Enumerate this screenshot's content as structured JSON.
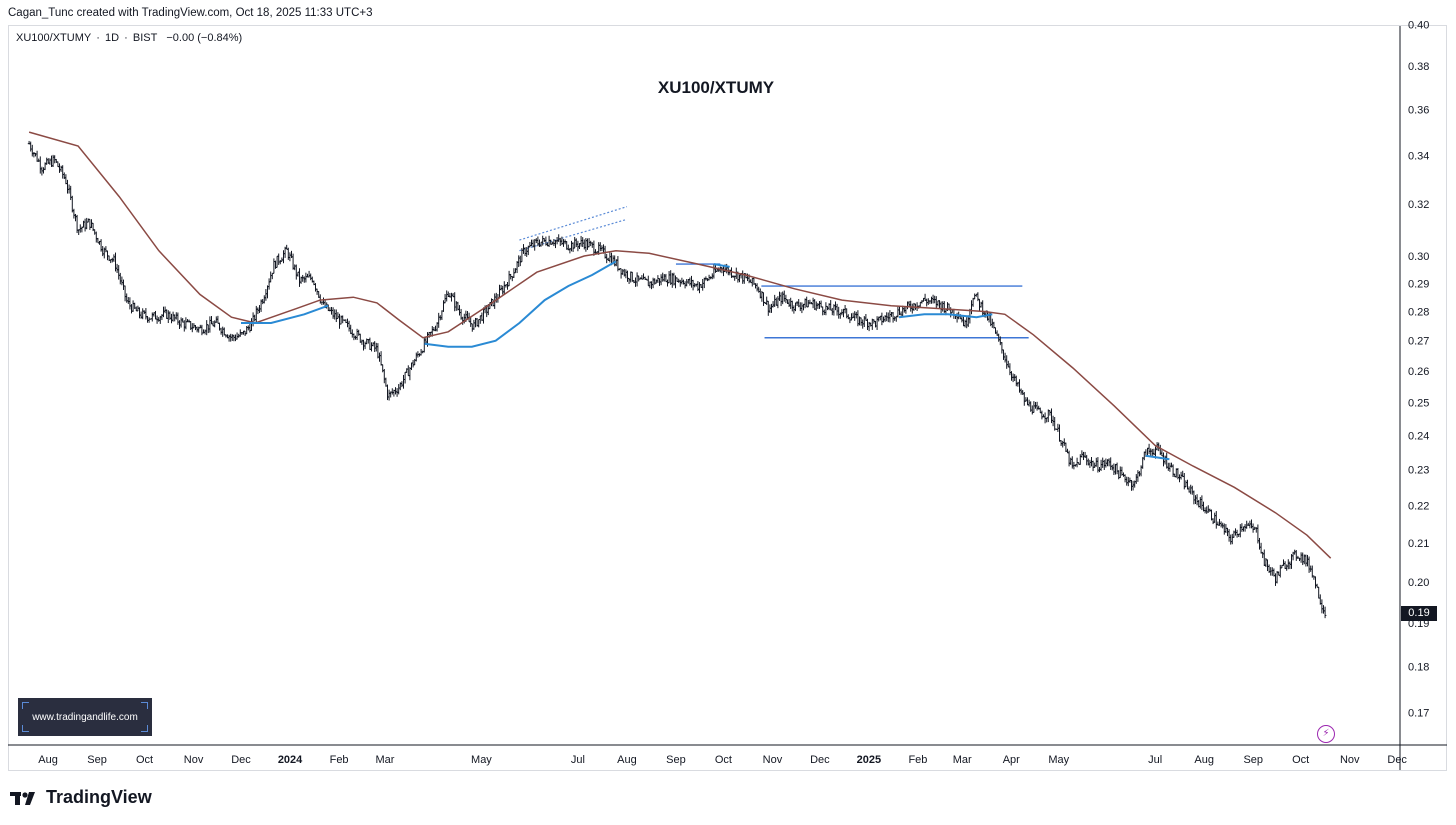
{
  "header": {
    "credit": "Cagan_Tunc created with TradingView.com, Oct 18, 2025 11:33 UTC+3"
  },
  "legend": {
    "symbol": "XU100/XTUMY",
    "interval": "1D",
    "exchange": "BIST",
    "change": "−0.00 (−0.84%)",
    "separator": "·"
  },
  "watermark": {
    "text": "www.tradingandlife.com"
  },
  "branding": {
    "logo_text": "TradingView"
  },
  "replay_icon": {
    "name": "lightning-icon",
    "glyph": "⚡"
  },
  "colors": {
    "candle": "#131722",
    "ma_slow": "#8b4a44",
    "ma_fast": "#2a8ad4",
    "level_line": "#3d76d6",
    "channel_line": "#5b8bd6",
    "price_badge_bg": "#131722"
  },
  "chart_data": {
    "type": "ohlc",
    "title": "XU100/XTUMY",
    "scale": "log",
    "ylim": [
      0.165,
      0.4
    ],
    "y_ticks": [
      "0.40",
      "0.38",
      "0.36",
      "0.34",
      "0.32",
      "0.30",
      "0.29",
      "0.28",
      "0.27",
      "0.26",
      "0.25",
      "0.24",
      "0.23",
      "0.22",
      "0.21",
      "0.20",
      "0.19",
      "0.18",
      "0.17"
    ],
    "x_ticks": [
      {
        "label": "Aug",
        "date": "2023-08-01"
      },
      {
        "label": "Sep",
        "date": "2023-09-01"
      },
      {
        "label": "Oct",
        "date": "2023-10-01"
      },
      {
        "label": "Nov",
        "date": "2023-11-01"
      },
      {
        "label": "Dec",
        "date": "2023-12-01"
      },
      {
        "label": "2024",
        "date": "2024-01-01",
        "bold": true
      },
      {
        "label": "Feb",
        "date": "2024-02-01"
      },
      {
        "label": "Mar",
        "date": "2024-03-01"
      },
      {
        "label": "May",
        "date": "2024-05-01"
      },
      {
        "label": "Jul",
        "date": "2024-07-01"
      },
      {
        "label": "Aug",
        "date": "2024-08-01"
      },
      {
        "label": "Sep",
        "date": "2024-09-01"
      },
      {
        "label": "Oct",
        "date": "2024-10-01"
      },
      {
        "label": "Nov",
        "date": "2024-11-01"
      },
      {
        "label": "Dec",
        "date": "2024-12-01"
      },
      {
        "label": "2025",
        "date": "2025-01-01",
        "bold": true
      },
      {
        "label": "Feb",
        "date": "2025-02-01"
      },
      {
        "label": "Mar",
        "date": "2025-03-01"
      },
      {
        "label": "Apr",
        "date": "2025-04-01"
      },
      {
        "label": "May",
        "date": "2025-05-01"
      },
      {
        "label": "Jul",
        "date": "2025-07-01"
      },
      {
        "label": "Aug",
        "date": "2025-08-01"
      },
      {
        "label": "Sep",
        "date": "2025-09-01"
      },
      {
        "label": "Oct",
        "date": "2025-10-01"
      },
      {
        "label": "Nov",
        "date": "2025-11-01"
      },
      {
        "label": "Dec",
        "date": "2025-12-01"
      }
    ],
    "last_price_label": "0.19",
    "last_price": 0.192,
    "series": [
      {
        "kind": "price",
        "points": [
          [
            "2023-07-20",
            0.345
          ],
          [
            "2023-07-28",
            0.335
          ],
          [
            "2023-08-05",
            0.338
          ],
          [
            "2023-08-12",
            0.33
          ],
          [
            "2023-08-20",
            0.31
          ],
          [
            "2023-08-27",
            0.313
          ],
          [
            "2023-09-05",
            0.302
          ],
          [
            "2023-09-12",
            0.298
          ],
          [
            "2023-09-20",
            0.283
          ],
          [
            "2023-09-28",
            0.279
          ],
          [
            "2023-10-05",
            0.278
          ],
          [
            "2023-10-15",
            0.279
          ],
          [
            "2023-10-25",
            0.276
          ],
          [
            "2023-11-05",
            0.274
          ],
          [
            "2023-11-15",
            0.276
          ],
          [
            "2023-11-25",
            0.271
          ],
          [
            "2023-12-02",
            0.272
          ],
          [
            "2023-12-08",
            0.276
          ],
          [
            "2023-12-15",
            0.285
          ],
          [
            "2023-12-22",
            0.297
          ],
          [
            "2023-12-30",
            0.302
          ],
          [
            "2024-01-07",
            0.291
          ],
          [
            "2024-01-15",
            0.292
          ],
          [
            "2024-01-22",
            0.282
          ],
          [
            "2024-01-30",
            0.278
          ],
          [
            "2024-02-08",
            0.274
          ],
          [
            "2024-02-16",
            0.27
          ],
          [
            "2024-02-25",
            0.267
          ],
          [
            "2024-03-03",
            0.252
          ],
          [
            "2024-03-10",
            0.255
          ],
          [
            "2024-03-18",
            0.262
          ],
          [
            "2024-03-25",
            0.268
          ],
          [
            "2024-04-02",
            0.275
          ],
          [
            "2024-04-10",
            0.287
          ],
          [
            "2024-04-18",
            0.279
          ],
          [
            "2024-04-26",
            0.275
          ],
          [
            "2024-05-05",
            0.281
          ],
          [
            "2024-05-12",
            0.286
          ],
          [
            "2024-05-20",
            0.293
          ],
          [
            "2024-05-28",
            0.302
          ],
          [
            "2024-06-05",
            0.305
          ],
          [
            "2024-06-15",
            0.306
          ],
          [
            "2024-06-25",
            0.304
          ],
          [
            "2024-07-05",
            0.305
          ],
          [
            "2024-07-15",
            0.302
          ],
          [
            "2024-07-22",
            0.299
          ],
          [
            "2024-07-30",
            0.294
          ],
          [
            "2024-08-07",
            0.291
          ],
          [
            "2024-08-15",
            0.29
          ],
          [
            "2024-08-25",
            0.292
          ],
          [
            "2024-09-05",
            0.291
          ],
          [
            "2024-09-15",
            0.289
          ],
          [
            "2024-09-22",
            0.292
          ],
          [
            "2024-09-30",
            0.296
          ],
          [
            "2024-10-06",
            0.294
          ],
          [
            "2024-10-14",
            0.292
          ],
          [
            "2024-10-22",
            0.289
          ],
          [
            "2024-10-30",
            0.281
          ],
          [
            "2024-11-07",
            0.285
          ],
          [
            "2024-11-15",
            0.282
          ],
          [
            "2024-11-25",
            0.283
          ],
          [
            "2024-12-05",
            0.281
          ],
          [
            "2024-12-15",
            0.28
          ],
          [
            "2024-12-25",
            0.277
          ],
          [
            "2025-01-05",
            0.276
          ],
          [
            "2025-01-12",
            0.278
          ],
          [
            "2025-01-20",
            0.28
          ],
          [
            "2025-01-28",
            0.282
          ],
          [
            "2025-02-05",
            0.284
          ],
          [
            "2025-02-13",
            0.283
          ],
          [
            "2025-02-20",
            0.281
          ],
          [
            "2025-02-27",
            0.279
          ],
          [
            "2025-03-03",
            0.275
          ],
          [
            "2025-03-08",
            0.286
          ],
          [
            "2025-03-14",
            0.281
          ],
          [
            "2025-03-20",
            0.275
          ],
          [
            "2025-03-26",
            0.267
          ],
          [
            "2025-04-02",
            0.258
          ],
          [
            "2025-04-10",
            0.25
          ],
          [
            "2025-04-18",
            0.247
          ],
          [
            "2025-04-26",
            0.246
          ],
          [
            "2025-05-04",
            0.237
          ],
          [
            "2025-05-10",
            0.23
          ],
          [
            "2025-05-16",
            0.234
          ],
          [
            "2025-05-24",
            0.231
          ],
          [
            "2025-06-02",
            0.232
          ],
          [
            "2025-06-10",
            0.228
          ],
          [
            "2025-06-18",
            0.226
          ],
          [
            "2025-06-25",
            0.235
          ],
          [
            "2025-07-02",
            0.236
          ],
          [
            "2025-07-10",
            0.231
          ],
          [
            "2025-07-18",
            0.227
          ],
          [
            "2025-07-26",
            0.222
          ],
          [
            "2025-08-04",
            0.218
          ],
          [
            "2025-08-12",
            0.214
          ],
          [
            "2025-08-18",
            0.211
          ],
          [
            "2025-08-26",
            0.215
          ],
          [
            "2025-09-03",
            0.213
          ],
          [
            "2025-09-08",
            0.205
          ],
          [
            "2025-09-15",
            0.201
          ],
          [
            "2025-09-22",
            0.205
          ],
          [
            "2025-09-29",
            0.207
          ],
          [
            "2025-10-03",
            0.206
          ],
          [
            "2025-10-08",
            0.203
          ],
          [
            "2025-10-13",
            0.196
          ],
          [
            "2025-10-17",
            0.192
          ]
        ]
      },
      {
        "kind": "ma_slow",
        "points": [
          [
            "2023-07-20",
            0.35
          ],
          [
            "2023-08-20",
            0.344
          ],
          [
            "2023-09-15",
            0.323
          ],
          [
            "2023-10-10",
            0.302
          ],
          [
            "2023-11-05",
            0.286
          ],
          [
            "2023-11-25",
            0.278
          ],
          [
            "2023-12-10",
            0.276
          ],
          [
            "2024-01-05",
            0.281
          ],
          [
            "2024-01-20",
            0.284
          ],
          [
            "2024-02-10",
            0.285
          ],
          [
            "2024-02-25",
            0.283
          ],
          [
            "2024-03-10",
            0.277
          ],
          [
            "2024-03-25",
            0.271
          ],
          [
            "2024-04-10",
            0.273
          ],
          [
            "2024-05-05",
            0.282
          ],
          [
            "2024-06-05",
            0.294
          ],
          [
            "2024-07-05",
            0.3
          ],
          [
            "2024-07-25",
            0.302
          ],
          [
            "2024-08-15",
            0.301
          ],
          [
            "2024-09-15",
            0.297
          ],
          [
            "2024-10-15",
            0.293
          ],
          [
            "2024-11-15",
            0.288
          ],
          [
            "2024-12-15",
            0.284
          ],
          [
            "2025-01-15",
            0.282
          ],
          [
            "2025-02-15",
            0.281
          ],
          [
            "2025-03-15",
            0.28
          ],
          [
            "2025-03-28",
            0.279
          ],
          [
            "2025-04-15",
            0.272
          ],
          [
            "2025-05-10",
            0.261
          ],
          [
            "2025-06-05",
            0.249
          ],
          [
            "2025-07-01",
            0.237
          ],
          [
            "2025-07-25",
            0.231
          ],
          [
            "2025-08-20",
            0.225
          ],
          [
            "2025-09-15",
            0.218
          ],
          [
            "2025-10-05",
            0.212
          ],
          [
            "2025-10-20",
            0.206
          ]
        ]
      },
      {
        "kind": "ma_fast",
        "segments": [
          [
            [
              "2023-12-01",
              0.276
            ],
            [
              "2023-12-20",
              0.276
            ],
            [
              "2024-01-10",
              0.279
            ],
            [
              "2024-01-25",
              0.282
            ]
          ],
          [
            [
              "2024-03-26",
              0.269
            ],
            [
              "2024-04-10",
              0.268
            ],
            [
              "2024-04-25",
              0.268
            ],
            [
              "2024-05-10",
              0.27
            ],
            [
              "2024-05-25",
              0.276
            ],
            [
              "2024-06-10",
              0.284
            ],
            [
              "2024-06-25",
              0.289
            ],
            [
              "2024-07-10",
              0.293
            ],
            [
              "2024-07-25",
              0.298
            ]
          ],
          [
            [
              "2024-09-25",
              0.297
            ],
            [
              "2024-10-05",
              0.296
            ]
          ],
          [
            [
              "2025-01-20",
              0.278
            ],
            [
              "2025-02-05",
              0.279
            ],
            [
              "2025-02-20",
              0.279
            ],
            [
              "2025-03-10",
              0.278
            ],
            [
              "2025-03-20",
              0.279
            ]
          ],
          [
            [
              "2025-06-25",
              0.234
            ],
            [
              "2025-07-10",
              0.233
            ]
          ]
        ]
      }
    ],
    "levels": [
      {
        "y": 0.289,
        "from": "2024-10-25",
        "to": "2025-04-08"
      },
      {
        "y": 0.271,
        "from": "2024-10-27",
        "to": "2025-04-12"
      },
      {
        "y": 0.297,
        "from": "2024-09-01",
        "to": "2024-09-29"
      }
    ],
    "channel": [
      {
        "from": [
          "2024-05-25",
          0.302
        ],
        "to": [
          "2024-08-01",
          0.314
        ]
      },
      {
        "from": [
          "2024-05-25",
          0.306
        ],
        "to": [
          "2024-08-01",
          0.319
        ]
      }
    ]
  }
}
